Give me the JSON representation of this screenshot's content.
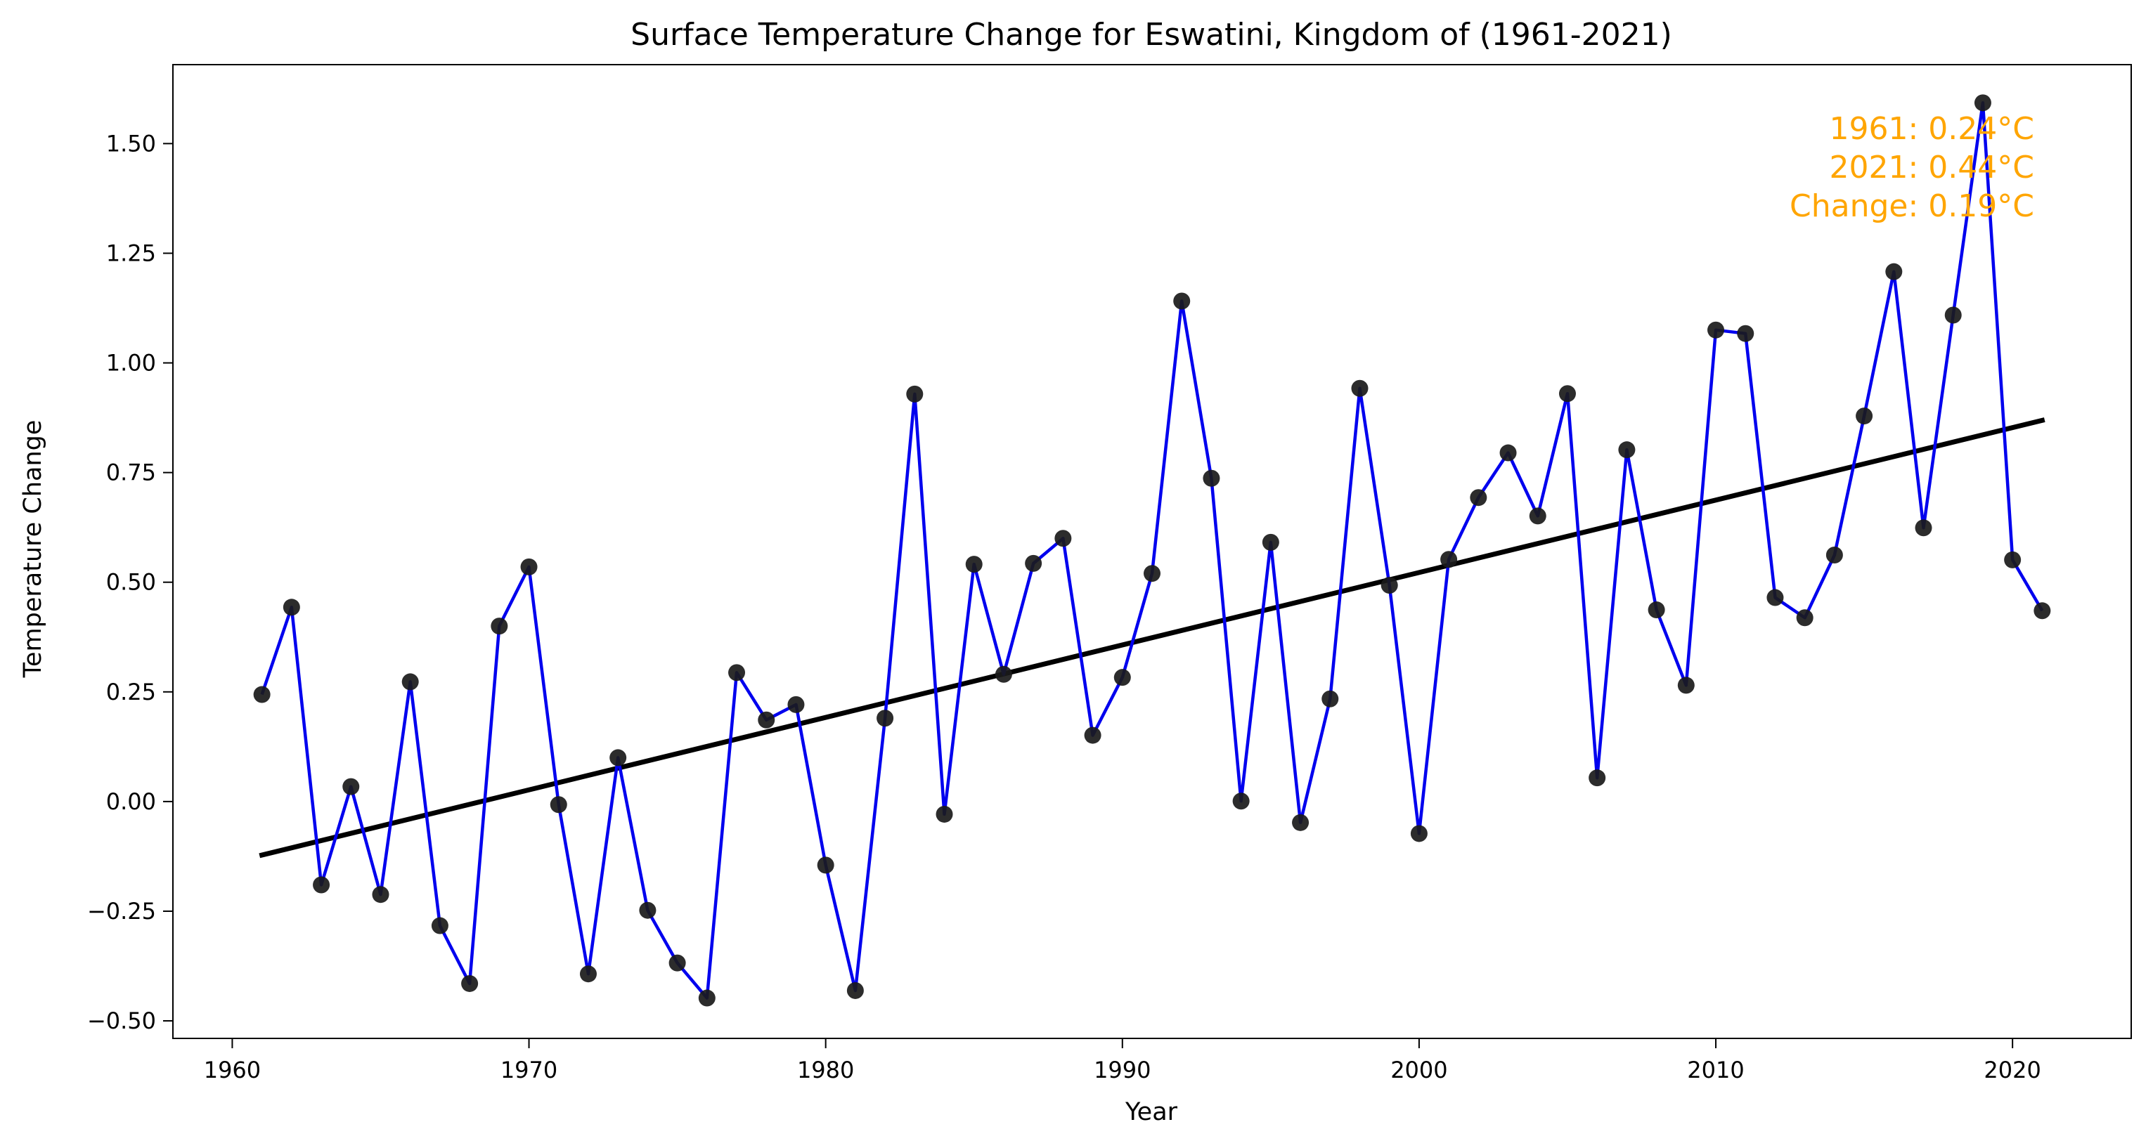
{
  "chart_data": {
    "type": "line",
    "title": "Surface Temperature Change for Eswatini, Kingdom of (1961-2021)",
    "xlabel": "Year",
    "ylabel": "Temperature Change",
    "xlim": [
      1958,
      2024
    ],
    "ylim": [
      -0.54,
      1.68
    ],
    "x_ticks": [
      1960,
      1970,
      1980,
      1990,
      2000,
      2010,
      2020
    ],
    "y_ticks": [
      -0.5,
      -0.25,
      0.0,
      0.25,
      0.5,
      0.75,
      1.0,
      1.25,
      1.5
    ],
    "y_tick_labels": [
      "−0.50",
      "−0.25",
      "0.00",
      "0.25",
      "0.50",
      "0.75",
      "1.00",
      "1.25",
      "1.50"
    ],
    "grid": false,
    "x": [
      1961,
      1962,
      1963,
      1964,
      1965,
      1966,
      1967,
      1968,
      1969,
      1970,
      1971,
      1972,
      1973,
      1974,
      1975,
      1976,
      1977,
      1978,
      1979,
      1980,
      1981,
      1982,
      1983,
      1984,
      1985,
      1986,
      1987,
      1988,
      1989,
      1990,
      1991,
      1992,
      1993,
      1994,
      1995,
      1996,
      1997,
      1998,
      1999,
      2000,
      2001,
      2002,
      2003,
      2004,
      2005,
      2006,
      2007,
      2008,
      2009,
      2010,
      2011,
      2012,
      2013,
      2014,
      2015,
      2016,
      2017,
      2018,
      2019,
      2020,
      2021
    ],
    "series": [
      {
        "values": [
          0.244,
          0.443,
          -0.19,
          0.034,
          -0.212,
          0.273,
          -0.283,
          -0.415,
          0.4,
          0.535,
          -0.007,
          -0.393,
          0.1,
          -0.248,
          -0.368,
          -0.448,
          0.294,
          0.186,
          0.221,
          -0.145,
          -0.431,
          0.19,
          0.929,
          -0.029,
          0.541,
          0.29,
          0.543,
          0.6,
          0.151,
          0.283,
          0.52,
          1.141,
          0.737,
          0.001,
          0.591,
          -0.048,
          0.234,
          0.942,
          0.493,
          -0.073,
          0.552,
          0.693,
          0.795,
          0.651,
          0.93,
          0.054,
          0.802,
          0.437,
          0.265,
          1.075,
          1.067,
          0.465,
          0.419,
          0.562,
          0.879,
          1.208,
          0.624,
          1.109,
          1.593,
          0.551,
          0.435
        ],
        "color": "#0000EE",
        "marker_color": "#1A1A1A"
      }
    ],
    "trendline": {
      "x": [
        1961,
        2021
      ],
      "y": [
        -0.122,
        0.869
      ],
      "color": "#000000"
    },
    "annotations": [
      "1961: 0.24°C",
      "2021: 0.44°C",
      "Change: 0.19°C"
    ],
    "annotation_color": "#FFA500"
  }
}
